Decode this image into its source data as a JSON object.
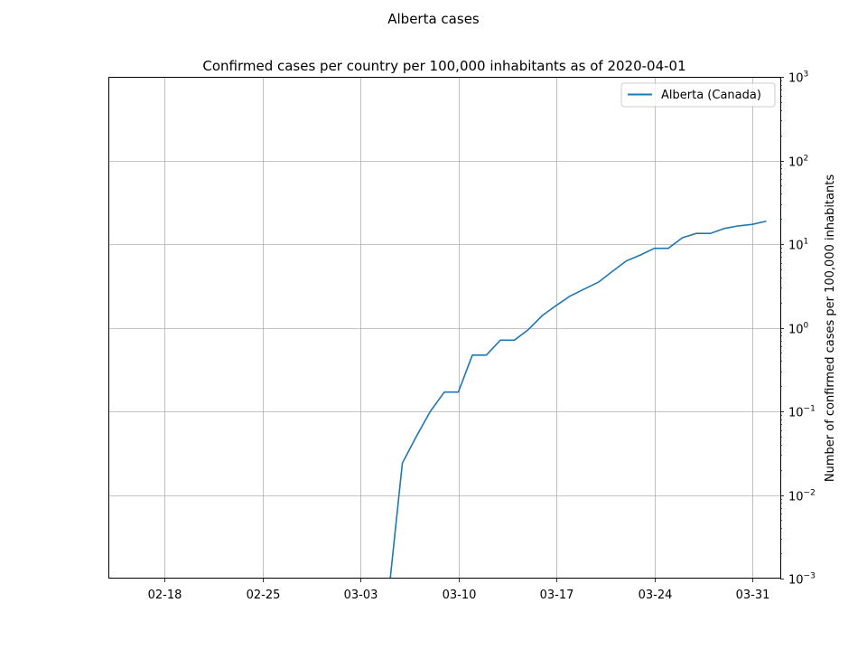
{
  "figure": {
    "suptitle": "Alberta cases"
  },
  "chart_data": {
    "type": "line",
    "title": "Confirmed cases per country per 100,000 inhabitants as of 2020-04-01",
    "xlabel": "",
    "ylabel": "Number of confirmed cases per 100,000 inhabitants",
    "yscale": "log",
    "ylim": [
      0.001,
      1000
    ],
    "xlim": [
      "2020-02-14",
      "2020-04-02"
    ],
    "y_ticks": [
      {
        "value": 0.001,
        "base": "10",
        "exp": "−3"
      },
      {
        "value": 0.01,
        "base": "10",
        "exp": "−2"
      },
      {
        "value": 0.1,
        "base": "10",
        "exp": "−1"
      },
      {
        "value": 1,
        "base": "10",
        "exp": "0"
      },
      {
        "value": 10,
        "base": "10",
        "exp": "1"
      },
      {
        "value": 100,
        "base": "10",
        "exp": "2"
      },
      {
        "value": 1000,
        "base": "10",
        "exp": "3"
      }
    ],
    "x_ticks": [
      {
        "date": "2020-02-18",
        "label": "02-18"
      },
      {
        "date": "2020-02-25",
        "label": "02-25"
      },
      {
        "date": "2020-03-03",
        "label": "03-03"
      },
      {
        "date": "2020-03-10",
        "label": "03-10"
      },
      {
        "date": "2020-03-17",
        "label": "03-17"
      },
      {
        "date": "2020-03-24",
        "label": "03-24"
      },
      {
        "date": "2020-03-31",
        "label": "03-31"
      }
    ],
    "grid": true,
    "legend_position": "top-right",
    "series": [
      {
        "name": "Alberta (Canada)",
        "color": "#1f77b4",
        "points": [
          {
            "x": "2020-03-05",
            "y": 0.0
          },
          {
            "x": "2020-03-06",
            "y": 0.024
          },
          {
            "x": "2020-03-07",
            "y": 0.05
          },
          {
            "x": "2020-03-08",
            "y": 0.1
          },
          {
            "x": "2020-03-09",
            "y": 0.17
          },
          {
            "x": "2020-03-10",
            "y": 0.17
          },
          {
            "x": "2020-03-11",
            "y": 0.47
          },
          {
            "x": "2020-03-12",
            "y": 0.47
          },
          {
            "x": "2020-03-13",
            "y": 0.71
          },
          {
            "x": "2020-03-14",
            "y": 0.71
          },
          {
            "x": "2020-03-15",
            "y": 0.95
          },
          {
            "x": "2020-03-16",
            "y": 1.4
          },
          {
            "x": "2020-03-17",
            "y": 1.85
          },
          {
            "x": "2020-03-18",
            "y": 2.4
          },
          {
            "x": "2020-03-19",
            "y": 2.9
          },
          {
            "x": "2020-03-20",
            "y": 3.5
          },
          {
            "x": "2020-03-21",
            "y": 4.7
          },
          {
            "x": "2020-03-22",
            "y": 6.3
          },
          {
            "x": "2020-03-23",
            "y": 7.4
          },
          {
            "x": "2020-03-24",
            "y": 8.9
          },
          {
            "x": "2020-03-25",
            "y": 8.9
          },
          {
            "x": "2020-03-26",
            "y": 11.9
          },
          {
            "x": "2020-03-27",
            "y": 13.4
          },
          {
            "x": "2020-03-28",
            "y": 13.4
          },
          {
            "x": "2020-03-29",
            "y": 15.4
          },
          {
            "x": "2020-03-30",
            "y": 16.5
          },
          {
            "x": "2020-03-31",
            "y": 17.2
          },
          {
            "x": "2020-04-01",
            "y": 18.8
          }
        ]
      }
    ]
  }
}
